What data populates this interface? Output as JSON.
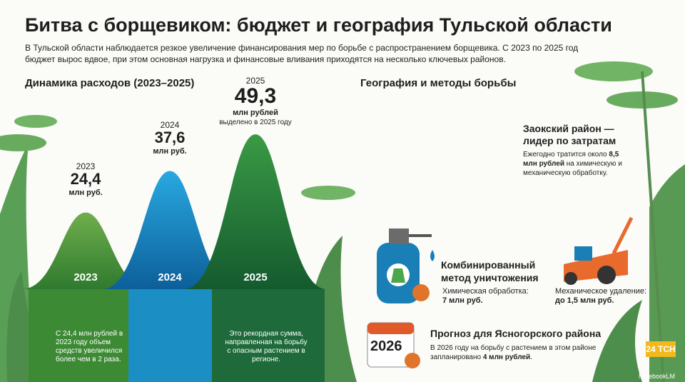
{
  "header": {
    "title": "Битва с борщевиком: бюджет и география Тульской области",
    "subtitle": "В Тульской области наблюдается резкое увеличение финансирования мер по борьбе с распространением борщевика. С 2023 по 2025 год бюджет вырос вдвое, при этом основная нагрузка и финансовые вливания приходятся на несколько ключевых районов."
  },
  "spending": {
    "title": "Динамика расходов (2023–2025)",
    "items": [
      {
        "year": "2023",
        "value": 24.4,
        "value_label": "24,4",
        "unit": "млн руб.",
        "axis_year": "2023",
        "note": "С 24,4 млн рублей в 2023 году объем средств увеличился более чем в 2 раза."
      },
      {
        "year": "2024",
        "value": 37.6,
        "value_label": "37,6",
        "unit": "млн руб.",
        "axis_year": "2024"
      },
      {
        "year": "2025",
        "value": 49.3,
        "value_label": "49,3",
        "unit": "млн рублей",
        "extra": "выделено в 2025 году",
        "axis_year": "2025",
        "note": "Это рекордная сумма, направленная на борьбу с опасным растением в регионе."
      }
    ]
  },
  "geography": {
    "title": "География и методы борьбы",
    "zaoksky": {
      "title": "Заокский район — лидер по затратам",
      "desc": [
        "Ежегодно тратится около ",
        "8,5 млн рублей",
        " на химическую и механическую обработку."
      ]
    },
    "combined": {
      "title": "Комбинированный метод уничтожения",
      "chem_label": "Химическая обработка:",
      "chem_value": "7 млн руб.",
      "mech_label": "Механическое удаление:",
      "mech_value": "до 1,5 млн руб."
    },
    "forecast": {
      "icon": "2026",
      "title": "Прогноз для Ясногорского района",
      "desc": [
        "В 2026 году на борьбу с растением в этом районе запланировано ",
        "4 млн рублей",
        "."
      ]
    }
  },
  "footer": {
    "logo": "24 ТСН",
    "credit": "NotebookLM"
  }
}
